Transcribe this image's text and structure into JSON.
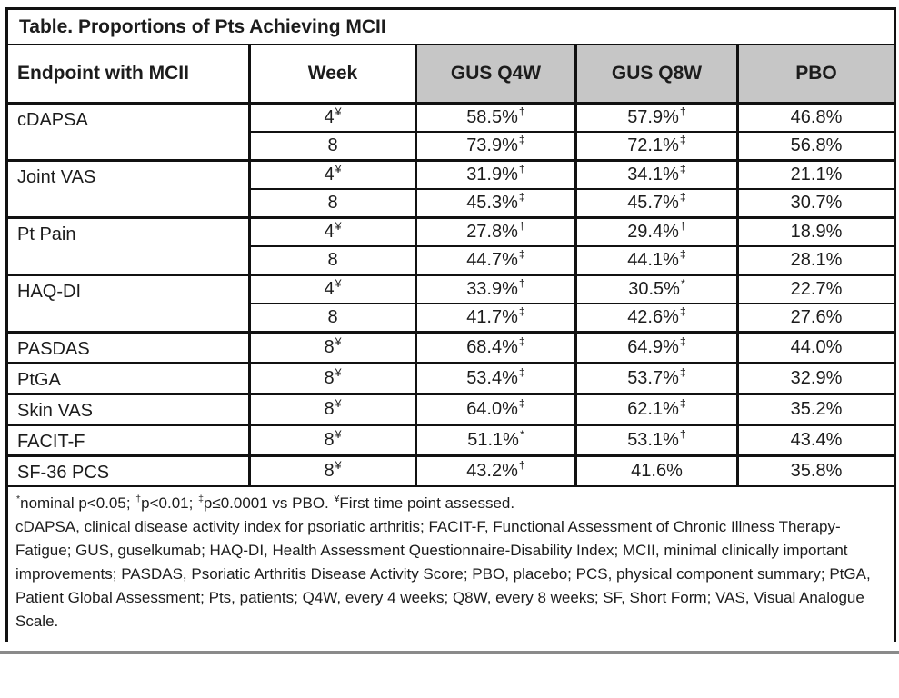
{
  "title": "Table. Proportions of Pts Achieving MCII",
  "table": {
    "headers": [
      "Endpoint with MCII",
      "Week",
      "GUS Q4W",
      "GUS Q8W",
      "PBO"
    ],
    "rows": [
      {
        "endpoint": "cDAPSA",
        "rowspan": 2,
        "group_start": true,
        "week": "4",
        "week_sup": "¥",
        "values": [
          {
            "text": "58.5%",
            "sup": "†"
          },
          {
            "text": "57.9%",
            "sup": "†"
          },
          {
            "text": "46.8%",
            "sup": ""
          }
        ]
      },
      {
        "endpoint": null,
        "rowspan": 1,
        "group_start": false,
        "week": "8",
        "week_sup": "",
        "values": [
          {
            "text": "73.9%",
            "sup": "‡"
          },
          {
            "text": "72.1%",
            "sup": "‡"
          },
          {
            "text": "56.8%",
            "sup": ""
          }
        ]
      },
      {
        "endpoint": "Joint VAS",
        "rowspan": 2,
        "group_start": true,
        "week": "4",
        "week_sup": "¥",
        "values": [
          {
            "text": "31.9%",
            "sup": "†"
          },
          {
            "text": "34.1%",
            "sup": "‡"
          },
          {
            "text": "21.1%",
            "sup": ""
          }
        ]
      },
      {
        "endpoint": null,
        "rowspan": 1,
        "group_start": false,
        "week": "8",
        "week_sup": "",
        "values": [
          {
            "text": "45.3%",
            "sup": "‡"
          },
          {
            "text": "45.7%",
            "sup": "‡"
          },
          {
            "text": "30.7%",
            "sup": ""
          }
        ]
      },
      {
        "endpoint": "Pt Pain",
        "rowspan": 2,
        "group_start": true,
        "week": "4",
        "week_sup": "¥",
        "values": [
          {
            "text": "27.8%",
            "sup": "†"
          },
          {
            "text": "29.4%",
            "sup": "†"
          },
          {
            "text": "18.9%",
            "sup": ""
          }
        ]
      },
      {
        "endpoint": null,
        "rowspan": 1,
        "group_start": false,
        "week": "8",
        "week_sup": "",
        "values": [
          {
            "text": "44.7%",
            "sup": "‡"
          },
          {
            "text": "44.1%",
            "sup": "‡"
          },
          {
            "text": "28.1%",
            "sup": ""
          }
        ]
      },
      {
        "endpoint": "HAQ-DI",
        "rowspan": 2,
        "group_start": true,
        "week": "4",
        "week_sup": "¥",
        "values": [
          {
            "text": "33.9%",
            "sup": "†"
          },
          {
            "text": "30.5%",
            "sup": "*"
          },
          {
            "text": "22.7%",
            "sup": ""
          }
        ]
      },
      {
        "endpoint": null,
        "rowspan": 1,
        "group_start": false,
        "week": "8",
        "week_sup": "",
        "values": [
          {
            "text": "41.7%",
            "sup": "‡"
          },
          {
            "text": "42.6%",
            "sup": "‡"
          },
          {
            "text": "27.6%",
            "sup": ""
          }
        ]
      },
      {
        "endpoint": "PASDAS",
        "rowspan": 1,
        "group_start": true,
        "week": "8",
        "week_sup": "¥",
        "values": [
          {
            "text": "68.4%",
            "sup": "‡"
          },
          {
            "text": "64.9%",
            "sup": "‡"
          },
          {
            "text": "44.0%",
            "sup": ""
          }
        ]
      },
      {
        "endpoint": "PtGA",
        "rowspan": 1,
        "group_start": true,
        "week": "8",
        "week_sup": "¥",
        "values": [
          {
            "text": "53.4%",
            "sup": "‡"
          },
          {
            "text": "53.7%",
            "sup": "‡"
          },
          {
            "text": "32.9%",
            "sup": ""
          }
        ]
      },
      {
        "endpoint": "Skin VAS",
        "rowspan": 1,
        "group_start": true,
        "week": "8",
        "week_sup": "¥",
        "values": [
          {
            "text": "64.0%",
            "sup": "‡"
          },
          {
            "text": "62.1%",
            "sup": "‡"
          },
          {
            "text": "35.2%",
            "sup": ""
          }
        ]
      },
      {
        "endpoint": "FACIT-F",
        "rowspan": 1,
        "group_start": true,
        "week": "8",
        "week_sup": "¥",
        "values": [
          {
            "text": "51.1%",
            "sup": "*"
          },
          {
            "text": "53.1%",
            "sup": "†"
          },
          {
            "text": "43.4%",
            "sup": ""
          }
        ]
      },
      {
        "endpoint": "SF-36 PCS",
        "rowspan": 1,
        "group_start": true,
        "week": "8",
        "week_sup": "¥",
        "values": [
          {
            "text": "43.2%",
            "sup": "†"
          },
          {
            "text": "41.6%",
            "sup": ""
          },
          {
            "text": "35.8%",
            "sup": ""
          }
        ]
      }
    ]
  },
  "footnotes": {
    "stats_segments": [
      {
        "sup": "*",
        "text": "nominal p<0.05; "
      },
      {
        "sup": "†",
        "text": "p<0.01; "
      },
      {
        "sup": "‡",
        "text": "p≤0.0001 vs PBO. "
      },
      {
        "sup": "¥",
        "text": "First time point assessed."
      }
    ],
    "abbreviations": "cDAPSA, clinical disease activity index for psoriatic arthritis; FACIT-F, Functional Assessment of Chronic Illness Therapy-Fatigue; GUS, guselkumab; HAQ-DI, Health Assessment Questionnaire-Disability Index; MCII, minimal clinically important improvements; PASDAS, Psoriatic Arthritis Disease Activity Score; PBO, placebo; PCS, physical component summary; PtGA, Patient Global Assessment; Pts, patients; Q4W, every 4 weeks; Q8W, every 8 weeks; SF, Short Form; VAS, Visual Analogue Scale."
  },
  "colors": {
    "header_fill": "#c6c6c6",
    "border": "#111111",
    "bottom_rule": "#8a8a8a"
  }
}
